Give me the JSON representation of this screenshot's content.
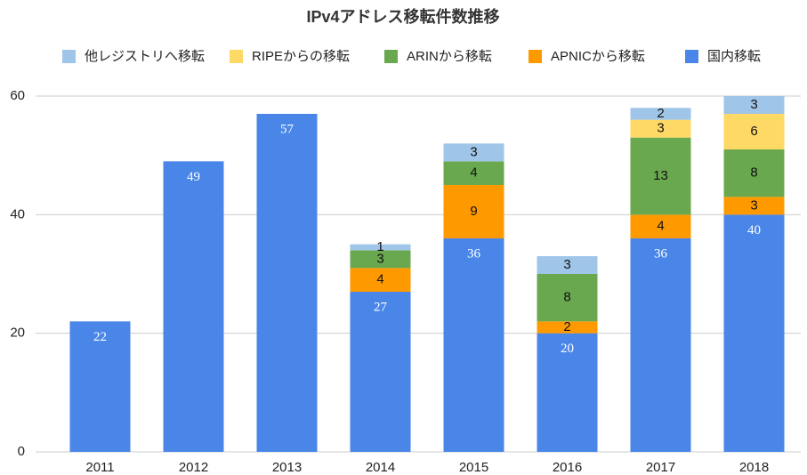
{
  "chart_data": {
    "type": "bar",
    "stacked": true,
    "title": "IPv4アドレス移転件数推移",
    "categories": [
      "2011",
      "2012",
      "2013",
      "2014",
      "2015",
      "2016",
      "2017",
      "2018"
    ],
    "series": [
      {
        "name": "他レジストリへ移転",
        "color": "#9fc5e8",
        "values": [
          null,
          null,
          null,
          1,
          3,
          3,
          2,
          3
        ]
      },
      {
        "name": "RIPEからの移転",
        "color": "#ffd966",
        "values": [
          null,
          null,
          null,
          null,
          null,
          null,
          3,
          6
        ]
      },
      {
        "name": "ARINから移転",
        "color": "#6aa84f",
        "values": [
          null,
          null,
          null,
          3,
          4,
          8,
          13,
          8
        ]
      },
      {
        "name": "APNICから移転",
        "color": "#ff9900",
        "values": [
          null,
          null,
          null,
          4,
          9,
          2,
          4,
          3
        ]
      },
      {
        "name": "国内移転",
        "color": "#4a86e8",
        "values": [
          22,
          49,
          57,
          27,
          36,
          20,
          36,
          40
        ]
      }
    ],
    "ylim": [
      0,
      60
    ],
    "yticks": [
      0,
      20,
      40,
      60
    ],
    "grid": true,
    "legend": "top"
  }
}
